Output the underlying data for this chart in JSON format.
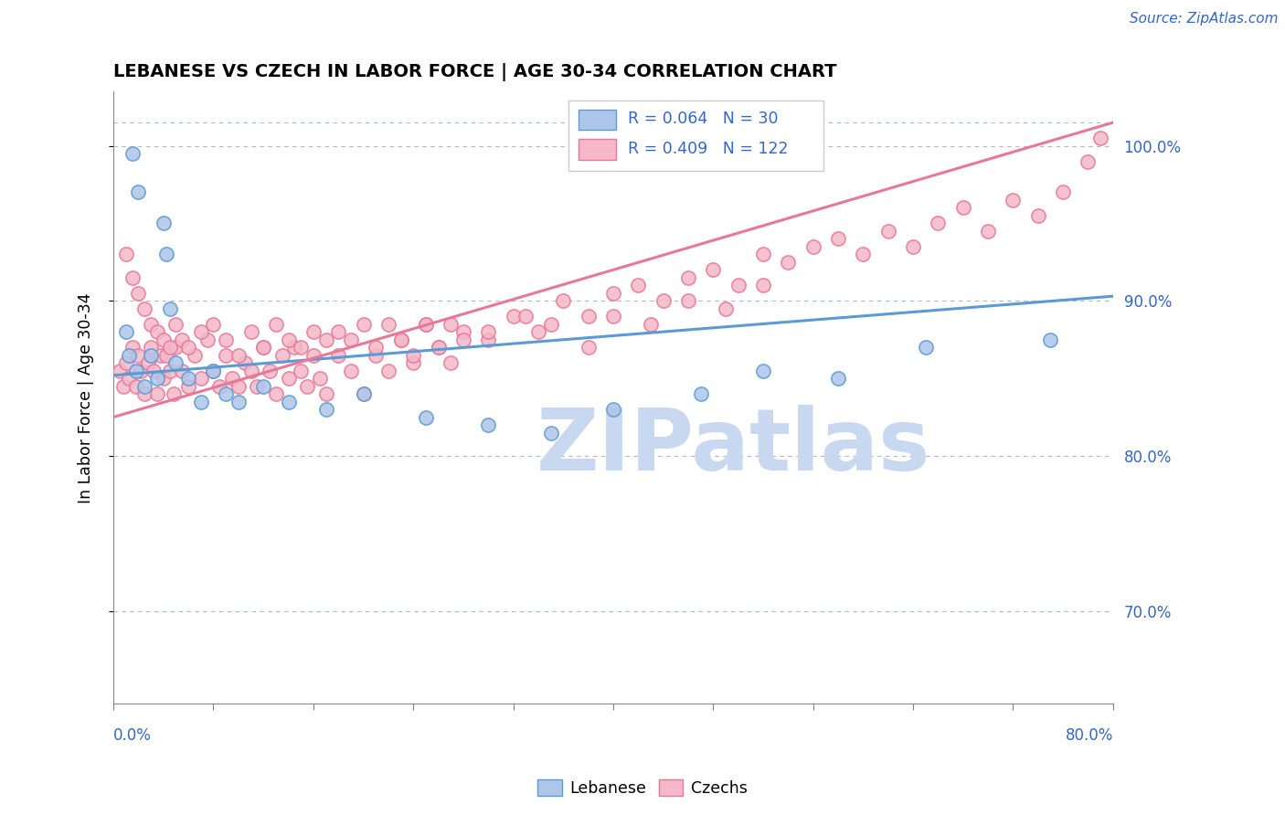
{
  "title": "LEBANESE VS CZECH IN LABOR FORCE | AGE 30-34 CORRELATION CHART",
  "source": "Source: ZipAtlas.com",
  "ylabel": "In Labor Force | Age 30-34",
  "xlim": [
    0.0,
    80.0
  ],
  "ylim": [
    64.0,
    103.5
  ],
  "yticks": [
    70.0,
    80.0,
    90.0,
    100.0
  ],
  "legend_blue_r": "R = 0.064",
  "legend_blue_n": "N = 30",
  "legend_pink_r": "R = 0.409",
  "legend_pink_n": "N = 122",
  "blue_color": "#aec6e8",
  "blue_edge_color": "#5b9bd5",
  "pink_color": "#f4b8c8",
  "pink_edge_color": "#e87898",
  "blue_line_color": "#5b9bd5",
  "pink_line_color": "#e87898",
  "legend_text_color": "#3366cc",
  "watermark_text": "ZIPatlas",
  "watermark_color": "#c8d8f0",
  "blue_trend_x": [
    0,
    80
  ],
  "blue_trend_y": [
    85.2,
    90.3
  ],
  "pink_trend_x": [
    0,
    80
  ],
  "pink_trend_y": [
    82.5,
    101.5
  ],
  "blue_x": [
    1.5,
    2.0,
    4.0,
    4.2,
    4.5,
    1.0,
    1.2,
    1.8,
    2.5,
    3.0,
    3.5,
    5.0,
    6.0,
    7.0,
    8.0,
    9.0,
    10.0,
    12.0,
    14.0,
    17.0,
    20.0,
    25.0,
    30.0,
    35.0,
    40.0,
    47.0,
    52.0,
    58.0,
    65.0,
    75.0
  ],
  "blue_y": [
    99.5,
    97.0,
    95.0,
    93.0,
    89.5,
    88.0,
    86.5,
    85.5,
    84.5,
    86.5,
    85.0,
    86.0,
    85.0,
    83.5,
    85.5,
    84.0,
    83.5,
    84.5,
    83.5,
    83.0,
    84.0,
    82.5,
    82.0,
    81.5,
    83.0,
    84.0,
    85.5,
    85.0,
    87.0,
    87.5
  ],
  "pink_x": [
    0.5,
    0.8,
    1.0,
    1.2,
    1.5,
    1.8,
    2.0,
    2.2,
    2.5,
    2.8,
    3.0,
    3.2,
    3.5,
    3.8,
    4.0,
    4.2,
    4.5,
    4.8,
    5.0,
    5.5,
    6.0,
    6.5,
    7.0,
    7.5,
    8.0,
    8.5,
    9.0,
    9.5,
    10.0,
    10.5,
    11.0,
    11.5,
    12.0,
    12.5,
    13.0,
    13.5,
    14.0,
    14.5,
    15.0,
    15.5,
    16.0,
    16.5,
    17.0,
    18.0,
    19.0,
    20.0,
    21.0,
    22.0,
    23.0,
    24.0,
    25.0,
    26.0,
    27.0,
    28.0,
    30.0,
    32.0,
    34.0,
    36.0,
    38.0,
    40.0,
    42.0,
    44.0,
    46.0,
    48.0,
    50.0,
    52.0,
    54.0,
    56.0,
    58.0,
    60.0,
    62.0,
    64.0,
    66.0,
    68.0,
    70.0,
    72.0,
    74.0,
    76.0,
    78.0,
    79.0,
    1.0,
    1.5,
    2.0,
    2.5,
    3.0,
    3.5,
    4.0,
    4.5,
    5.0,
    5.5,
    6.0,
    7.0,
    8.0,
    9.0,
    10.0,
    11.0,
    12.0,
    13.0,
    14.0,
    15.0,
    16.0,
    17.0,
    18.0,
    19.0,
    20.0,
    21.0,
    22.0,
    23.0,
    24.0,
    25.0,
    26.0,
    27.0,
    28.0,
    30.0,
    33.0,
    35.0,
    38.0,
    40.0,
    43.0,
    46.0,
    49.0,
    52.0
  ],
  "pink_y": [
    85.5,
    84.5,
    86.0,
    85.0,
    87.0,
    84.5,
    86.5,
    85.5,
    84.0,
    86.0,
    87.0,
    85.5,
    84.0,
    86.5,
    85.0,
    86.5,
    85.5,
    84.0,
    87.0,
    85.5,
    84.5,
    86.5,
    85.0,
    87.5,
    85.5,
    84.5,
    86.5,
    85.0,
    84.5,
    86.0,
    85.5,
    84.5,
    87.0,
    85.5,
    84.0,
    86.5,
    85.0,
    87.0,
    85.5,
    84.5,
    86.5,
    85.0,
    84.0,
    86.5,
    85.5,
    84.0,
    86.5,
    85.5,
    87.5,
    86.0,
    88.5,
    87.0,
    86.0,
    88.0,
    87.5,
    89.0,
    88.0,
    90.0,
    89.0,
    90.5,
    91.0,
    90.0,
    91.5,
    92.0,
    91.0,
    93.0,
    92.5,
    93.5,
    94.0,
    93.0,
    94.5,
    93.5,
    95.0,
    96.0,
    94.5,
    96.5,
    95.5,
    97.0,
    99.0,
    100.5,
    93.0,
    91.5,
    90.5,
    89.5,
    88.5,
    88.0,
    87.5,
    87.0,
    88.5,
    87.5,
    87.0,
    88.0,
    88.5,
    87.5,
    86.5,
    88.0,
    87.0,
    88.5,
    87.5,
    87.0,
    88.0,
    87.5,
    88.0,
    87.5,
    88.5,
    87.0,
    88.5,
    87.5,
    86.5,
    88.5,
    87.0,
    88.5,
    87.5,
    88.0,
    89.0,
    88.5,
    87.0,
    89.0,
    88.5,
    90.0,
    89.5,
    91.0
  ]
}
